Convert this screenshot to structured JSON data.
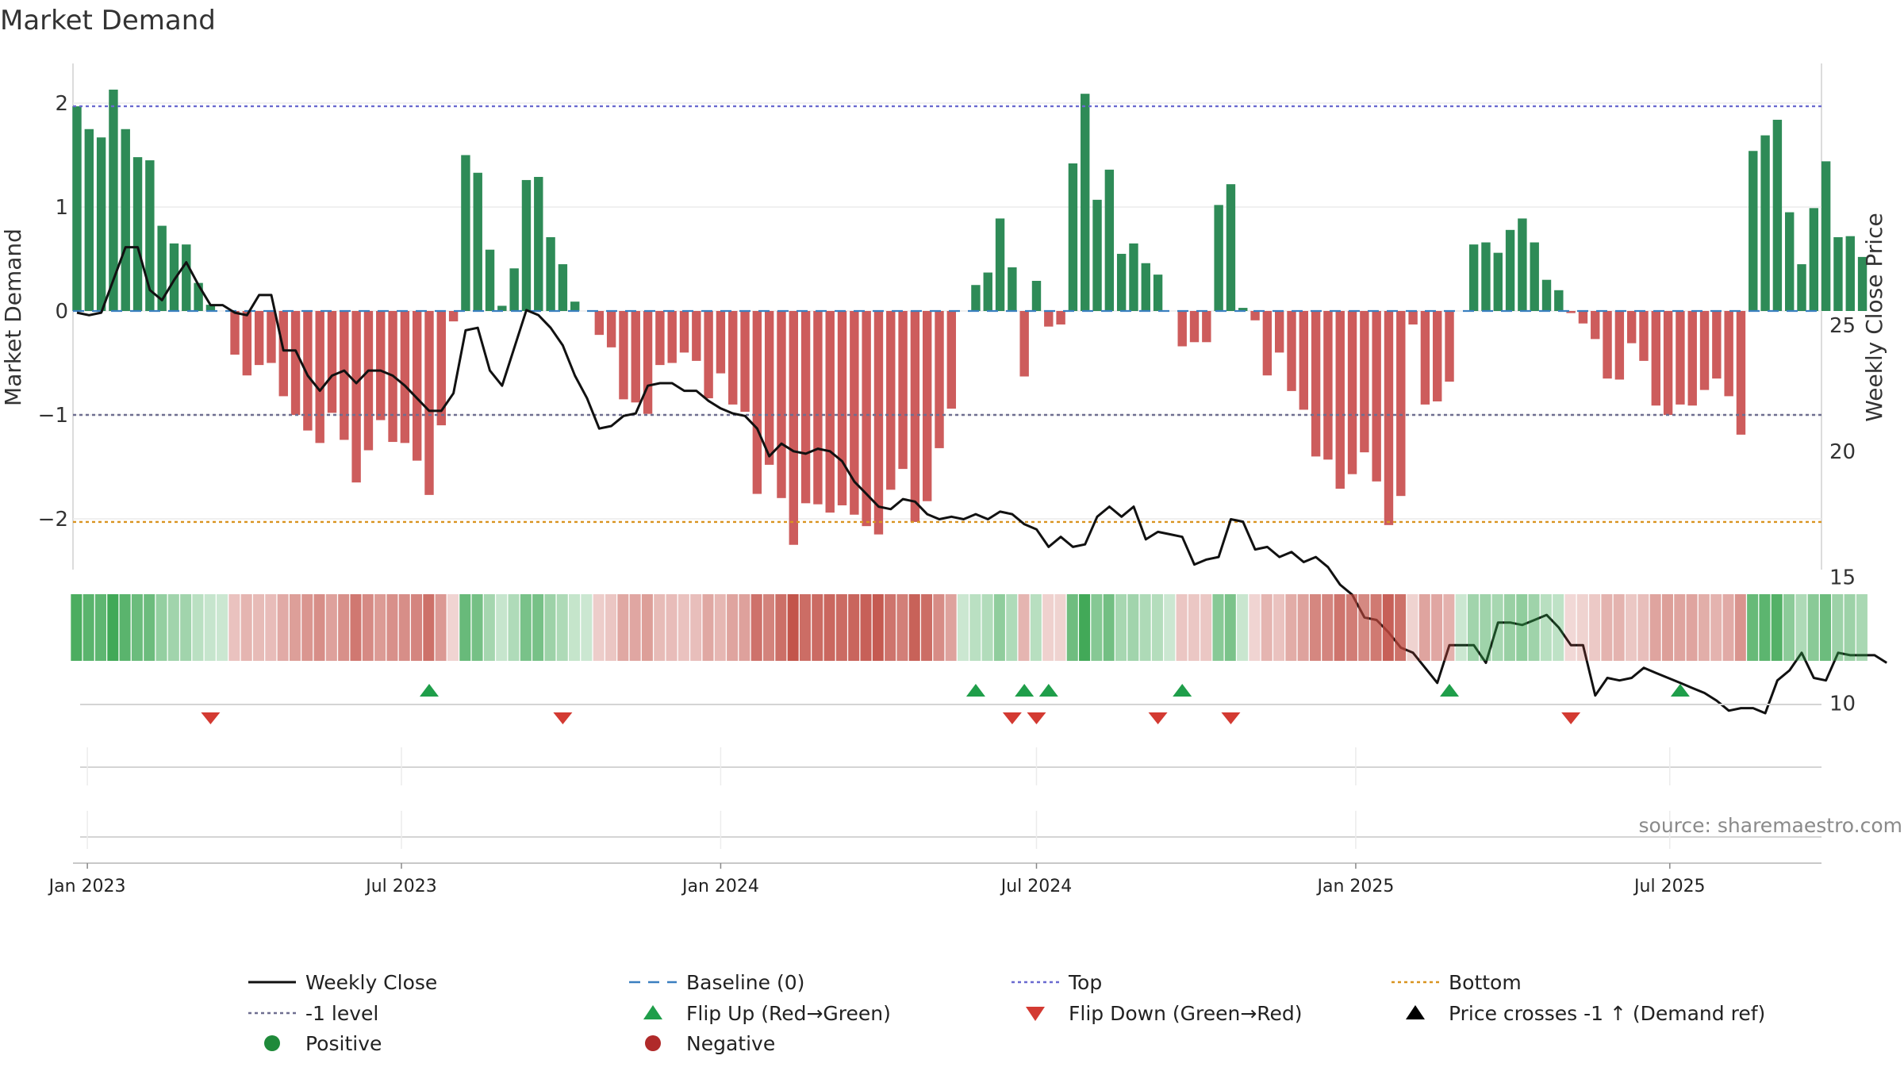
{
  "chart_data": {
    "type": "bar",
    "title": "Market Demand",
    "ylabel": "Market Demand",
    "ylabel_right": "Weekly Close Price",
    "ylim": [
      -2.5,
      2.5
    ],
    "ylim_right": [
      8.9,
      29.2
    ],
    "yticks": [
      2,
      1,
      0,
      -1,
      -2
    ],
    "ytick_labels": [
      "2",
      "1",
      "0",
      "−1",
      "−2"
    ],
    "yticks_right": [
      25,
      20,
      15,
      10
    ],
    "ytick_labels_right": [
      "25",
      "20",
      "15",
      "10"
    ],
    "x_start": "2022-12-26",
    "x_interval_days": 7,
    "xticks": [
      {
        "label": "Jan 2023",
        "date": "2023-01-01"
      },
      {
        "label": "Jul 2023",
        "date": "2023-07-01"
      },
      {
        "label": "Jan 2024",
        "date": "2024-01-01"
      },
      {
        "label": "Jul 2024",
        "date": "2024-07-01"
      },
      {
        "label": "Jan 2025",
        "date": "2025-01-01"
      },
      {
        "label": "Jul 2025",
        "date": "2025-07-01"
      }
    ],
    "reference_lines": {
      "top": 1.97,
      "bottom": -2.03,
      "minus_one": -1.0,
      "baseline": 0
    },
    "demand": [
      1.97,
      1.75,
      1.67,
      2.13,
      1.75,
      1.48,
      1.45,
      0.82,
      0.65,
      0.64,
      0.27,
      0.06,
      0,
      -0.42,
      -0.62,
      -0.52,
      -0.5,
      -0.82,
      -1.0,
      -1.15,
      -1.27,
      -0.98,
      -1.24,
      -1.65,
      -1.34,
      -1.05,
      -1.26,
      -1.27,
      -1.44,
      -1.77,
      -1.1,
      -0.1,
      1.5,
      1.33,
      0.59,
      0.05,
      0.41,
      1.26,
      1.29,
      0.71,
      0.45,
      0.09,
      0,
      -0.23,
      -0.35,
      -0.85,
      -0.88,
      -0.99,
      -0.52,
      -0.5,
      -0.4,
      -0.48,
      -0.84,
      -0.6,
      -0.9,
      -0.97,
      -1.76,
      -1.48,
      -1.8,
      -2.25,
      -1.85,
      -1.86,
      -1.94,
      -1.87,
      -1.96,
      -2.07,
      -2.15,
      -1.72,
      -1.52,
      -2.03,
      -1.83,
      -1.32,
      -0.94,
      0,
      0.25,
      0.37,
      0.89,
      0.42,
      -0.63,
      0.29,
      -0.15,
      -0.13,
      1.42,
      2.09,
      1.07,
      1.36,
      0.55,
      0.65,
      0.46,
      0.35,
      0,
      -0.34,
      -0.3,
      -0.3,
      1.02,
      1.22,
      0.03,
      -0.09,
      -0.62,
      -0.4,
      -0.77,
      -0.95,
      -1.4,
      -1.43,
      -1.71,
      -1.57,
      -1.36,
      -1.64,
      -2.06,
      -1.78,
      -0.13,
      -0.9,
      -0.87,
      -0.68,
      0,
      0.64,
      0.66,
      0.56,
      0.78,
      0.89,
      0.66,
      0.3,
      0.2,
      -0.02,
      -0.12,
      -0.27,
      -0.65,
      -0.66,
      -0.31,
      -0.48,
      -0.91,
      -1.0,
      -0.9,
      -0.91,
      -0.76,
      -0.65,
      -0.82,
      -1.19,
      1.54,
      1.69,
      1.84,
      0.95,
      0.45,
      0.99,
      1.44,
      0.71,
      0.72,
      0.52
    ],
    "weekly_close": [
      25.5,
      25.4,
      25.5,
      26.8,
      28.1,
      28.1,
      26.4,
      26.0,
      26.8,
      27.5,
      26.6,
      25.8,
      25.8,
      25.5,
      25.4,
      26.2,
      26.2,
      24.0,
      24.0,
      23.0,
      22.4,
      23.0,
      23.2,
      22.7,
      23.2,
      23.2,
      23.0,
      22.6,
      22.1,
      21.6,
      21.6,
      22.3,
      24.8,
      24.9,
      23.2,
      22.6,
      24.1,
      25.6,
      25.4,
      24.9,
      24.2,
      23.0,
      22.1,
      20.9,
      21.0,
      21.4,
      21.5,
      22.6,
      22.7,
      22.7,
      22.4,
      22.4,
      22.0,
      21.7,
      21.5,
      21.4,
      20.9,
      19.8,
      20.3,
      20.0,
      19.9,
      20.1,
      20.0,
      19.6,
      18.8,
      18.3,
      17.8,
      17.7,
      18.1,
      18.0,
      17.5,
      17.3,
      17.4,
      17.3,
      17.5,
      17.3,
      17.6,
      17.5,
      17.1,
      16.9,
      16.2,
      16.6,
      16.2,
      16.3,
      17.4,
      17.8,
      17.4,
      17.8,
      16.5,
      16.8,
      16.7,
      16.6,
      15.5,
      15.7,
      15.8,
      17.3,
      17.2,
      16.1,
      16.2,
      15.8,
      16.0,
      15.6,
      15.8,
      15.4,
      14.7,
      14.3,
      13.4,
      13.3,
      12.8,
      12.2,
      12.0,
      11.4,
      10.8,
      12.3,
      12.3,
      12.3,
      11.6,
      13.2,
      13.2,
      13.1,
      13.3,
      13.5,
      13.0,
      12.3,
      12.3,
      10.3,
      11.0,
      10.9,
      11.0,
      11.4,
      11.2,
      11.0,
      10.8,
      10.6,
      10.4,
      10.1,
      9.7,
      9.8,
      9.8,
      9.6,
      10.9,
      11.3,
      12.0,
      11.0,
      10.9,
      12.0,
      11.9,
      11.9,
      11.9,
      11.6
    ],
    "strip_rows": {
      "flip_up_dates": [
        "2023-07-17",
        "2024-05-27",
        "2024-06-24",
        "2024-07-08",
        "2024-09-23",
        "2025-02-24",
        "2025-07-07"
      ],
      "flip_down_dates": [
        "2023-03-13",
        "2023-10-02",
        "2024-06-17",
        "2024-07-01",
        "2024-09-09",
        "2024-10-21",
        "2025-05-05"
      ],
      "price_cross_dates": []
    },
    "legend": [
      {
        "label": "Weekly Close",
        "style": "line",
        "color": "#111111"
      },
      {
        "label": "Baseline (0)",
        "style": "dashed",
        "color": "#3a7fbf"
      },
      {
        "label": "Top",
        "style": "dotted",
        "color": "#6a6ad0"
      },
      {
        "label": "Bottom",
        "style": "dotted",
        "color": "#d99420"
      },
      {
        "label": "-1 level",
        "style": "dotted",
        "color": "#6e6e90"
      },
      {
        "label": "Flip Up (Red→Green)",
        "style": "tri-up",
        "color": "#1f9e4a"
      },
      {
        "label": "Flip Down (Green→Red)",
        "style": "tri-down",
        "color": "#d33a32"
      },
      {
        "label": "Price crosses -1 ↑ (Demand ref)",
        "style": "tri-up",
        "color": "#000000"
      },
      {
        "label": "Positive",
        "style": "dot",
        "color": "#1f8a3a"
      },
      {
        "label": "Negative",
        "style": "dot",
        "color": "#b02a2a"
      }
    ],
    "source": "source: sharemaestro.com",
    "colors": {
      "positive": "#2e8b57",
      "negative": "#cd5c5c",
      "price": "#111111",
      "baseline": "#3a7fbf",
      "top": "#6a6ad0",
      "bottom": "#d99420",
      "minus_one": "#6e6e90",
      "flip_up": "#1f9e4a",
      "flip_down": "#d33a32"
    }
  }
}
